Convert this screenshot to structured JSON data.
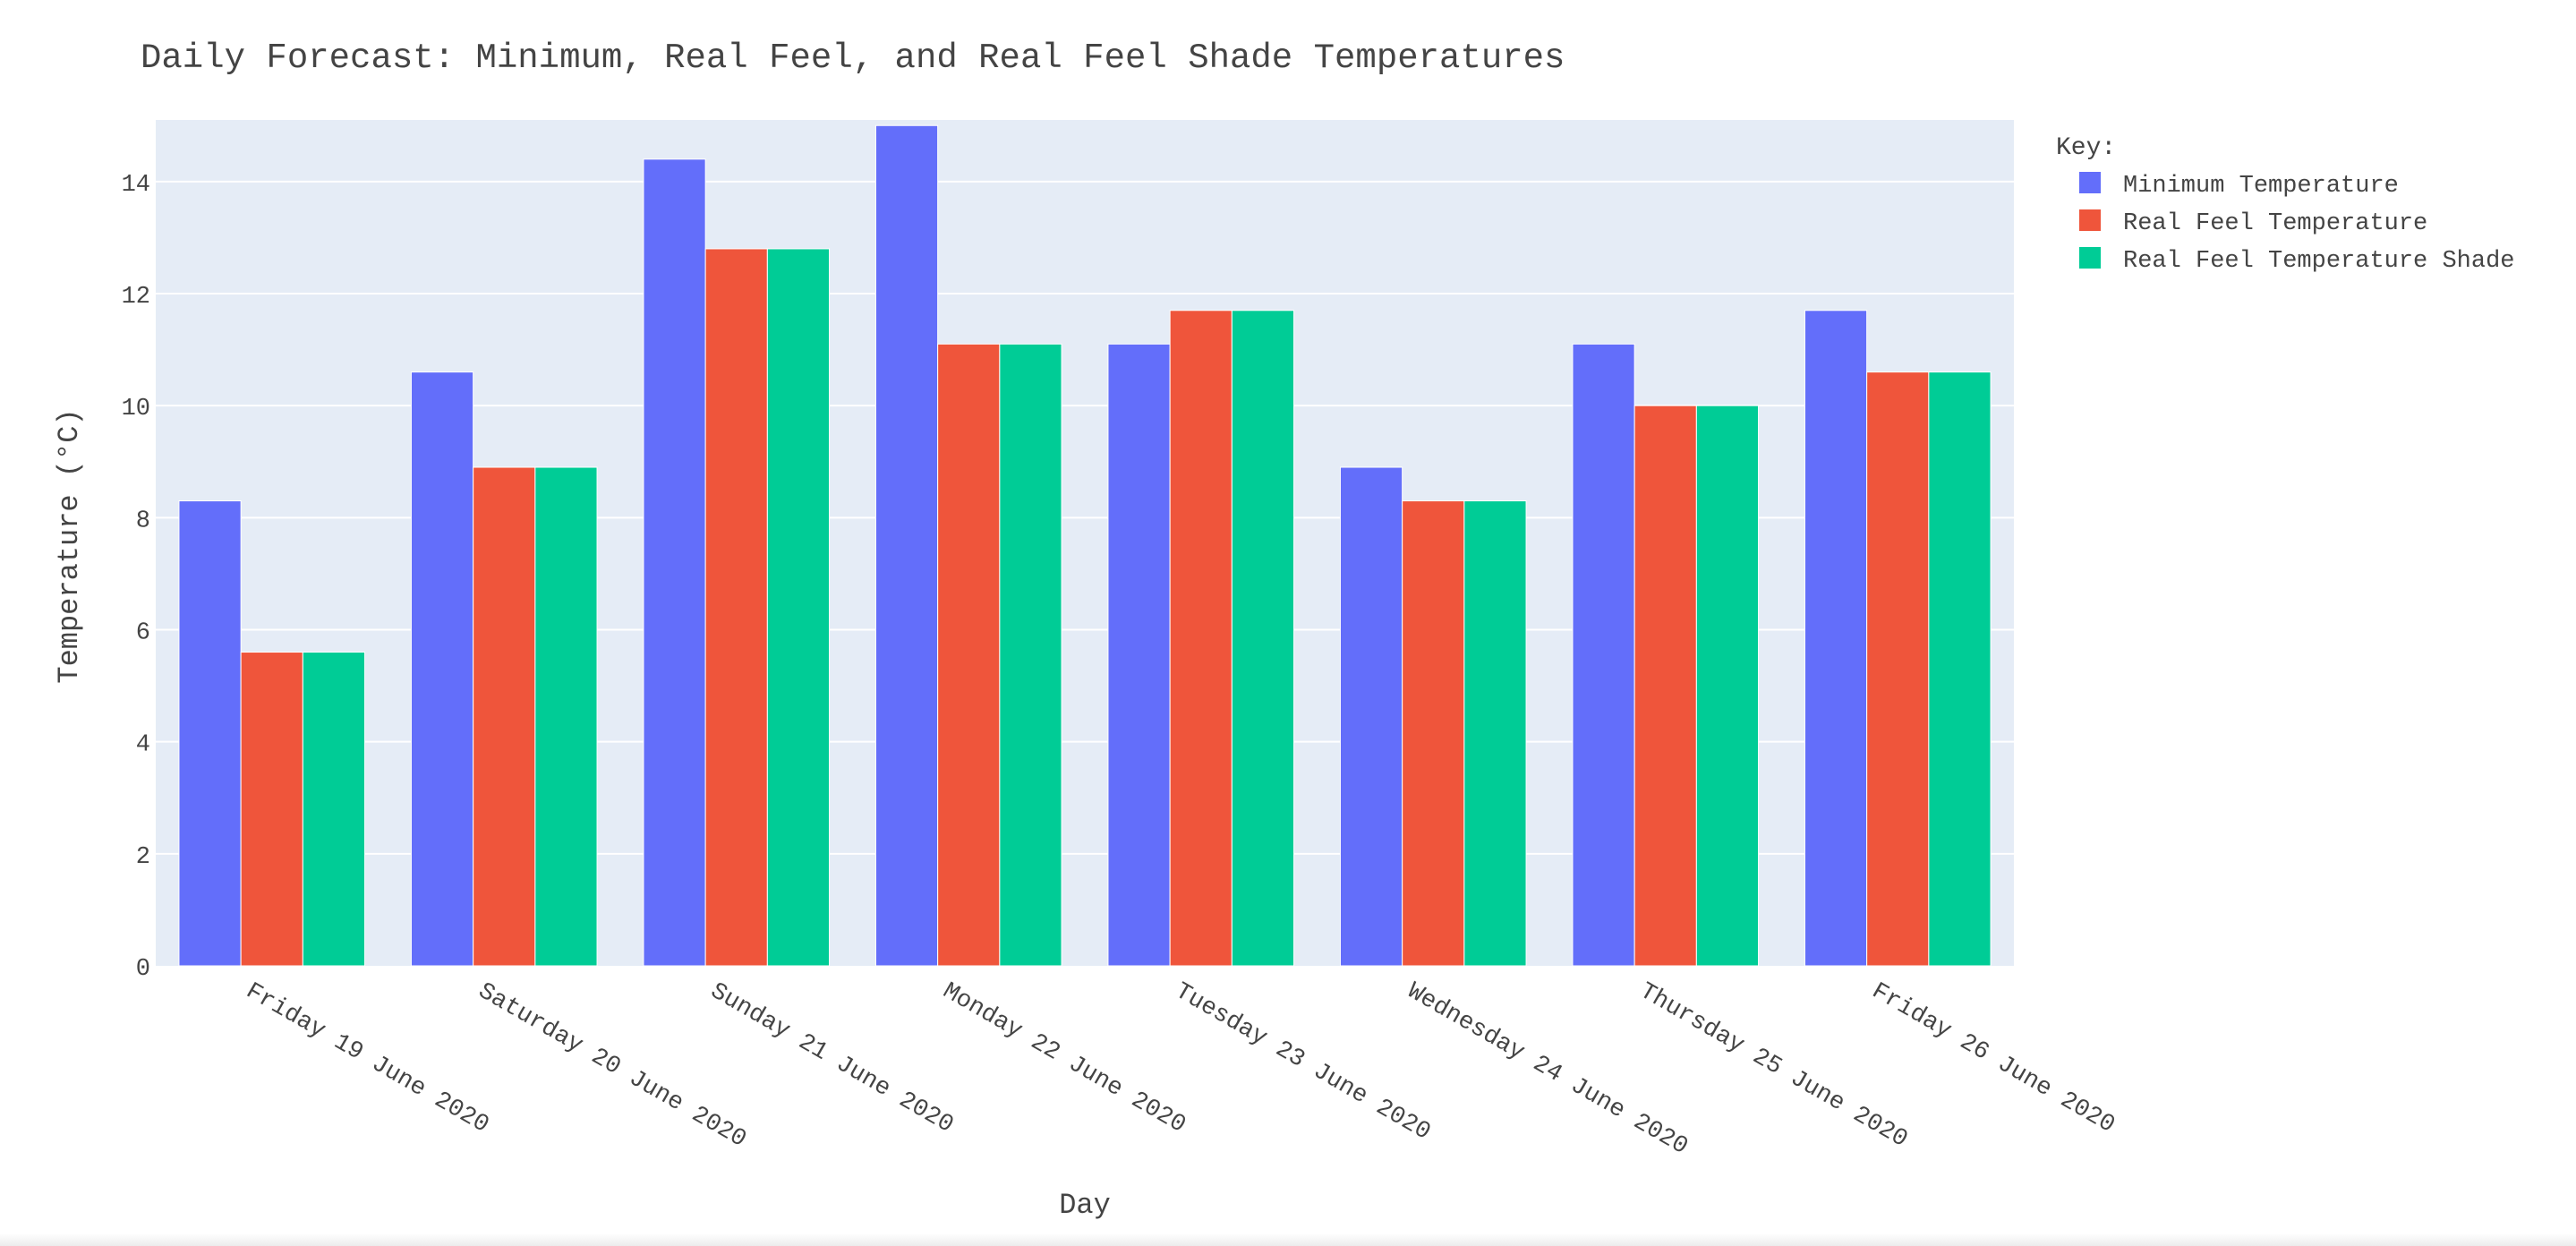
{
  "chart_data": {
    "type": "bar",
    "title": "Daily Forecast: Minimum, Real Feel, and Real Feel Shade Temperatures",
    "xlabel": "Day",
    "ylabel": "Temperature (°C)",
    "ylim": [
      0,
      15.1
    ],
    "yticks": [
      0,
      2,
      4,
      6,
      8,
      10,
      12,
      14
    ],
    "grid": true,
    "legend_title": "Key:",
    "legend_position": "top-right",
    "categories": [
      "Friday 19 June 2020",
      "Saturday 20 June 2020",
      "Sunday 21 June 2020",
      "Monday 22 June 2020",
      "Tuesday 23 June 2020",
      "Wednesday 24 June 2020",
      "Thursday 25 June 2020",
      "Friday 26 June 2020"
    ],
    "series": [
      {
        "name": "Minimum Temperature",
        "color": "#636efa",
        "values": [
          8.3,
          10.6,
          14.4,
          15.0,
          11.1,
          8.9,
          11.1,
          11.7
        ]
      },
      {
        "name": "Real Feel Temperature",
        "color": "#ef553b",
        "values": [
          5.6,
          8.9,
          12.8,
          11.1,
          11.7,
          8.3,
          10.0,
          10.6
        ]
      },
      {
        "name": "Real Feel Temperature Shade",
        "color": "#00cc96",
        "values": [
          5.6,
          8.9,
          12.8,
          11.1,
          11.7,
          8.3,
          10.0,
          10.6
        ]
      }
    ],
    "plot_bg": "#e5ecf6"
  }
}
